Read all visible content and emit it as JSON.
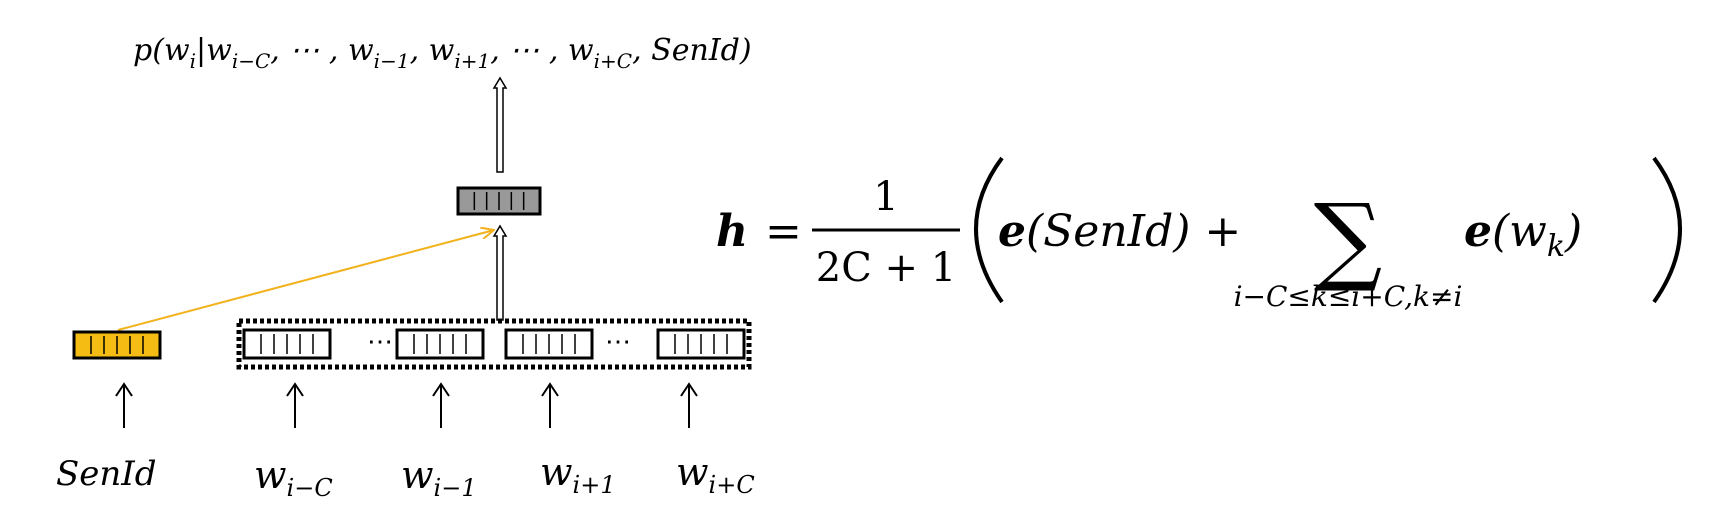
{
  "colors": {
    "context_vector_fill": "#ffffff",
    "sentence_vector_fill": "#f5bd14",
    "hidden_vector_fill": "#999999",
    "sentence_arrow": "#f2b21e",
    "stroke": "#000000"
  },
  "output_label": {
    "p": "p",
    "open": "(",
    "w_i": "w",
    "w_i_sub": "i",
    "bar": "|",
    "w1": "w",
    "w1_sub": "i−C",
    "sep1": ", ⋯ , ",
    "w2": "w",
    "w2_sub": "i−1",
    "comma2": ", ",
    "w3": "w",
    "w3_sub": "i+1",
    "sep3": ", ⋯ , ",
    "w4": "w",
    "w4_sub": "i+C",
    "comma4": ", ",
    "senid": "SenId",
    "close": ")"
  },
  "context_dots": [
    "⋯",
    "⋯"
  ],
  "inputs": [
    {
      "main": "SenId",
      "sub": ""
    },
    {
      "main": "w",
      "sub": "i−C"
    },
    {
      "main": "w",
      "sub": "i−1"
    },
    {
      "main": "w",
      "sub": "i+1"
    },
    {
      "main": "w",
      "sub": "i+C"
    }
  ],
  "formula": {
    "lhs": "h",
    "equals": "=",
    "numerator": "1",
    "denominator": "2C + 1",
    "e1": "e",
    "e1_arg": "(SenId) +",
    "sum_symbol": "∑",
    "sum_subscript": "i−C≤k≤i+C,k≠i",
    "e2": "e",
    "e2_open": "(",
    "e2_w": "w",
    "e2_sub": "k",
    "e2_close": ")"
  }
}
